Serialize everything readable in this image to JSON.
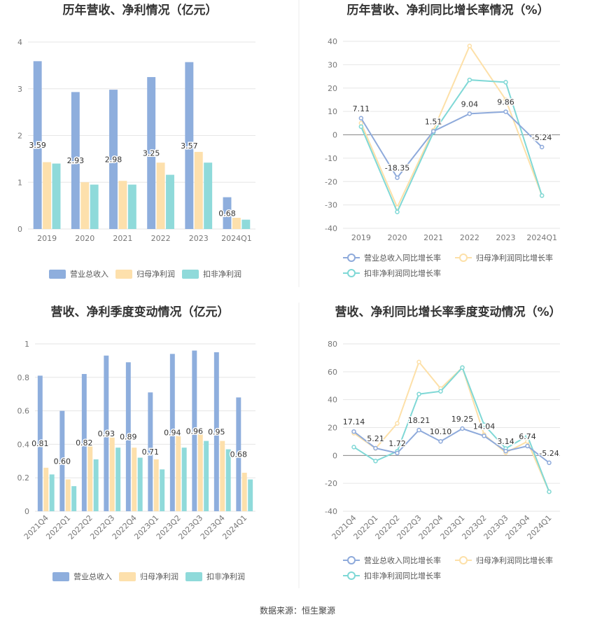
{
  "source": "数据来源：恒生聚源",
  "chart_data": [
    {
      "type": "bar",
      "title": "历年营收、净利情况（亿元）",
      "categories": [
        "2019",
        "2020",
        "2021",
        "2022",
        "2023",
        "2024Q1"
      ],
      "ylim": [
        0,
        4
      ],
      "yticks": [
        0,
        1,
        2,
        3,
        4
      ],
      "series": [
        {
          "name": "营业总收入",
          "color": "#8eaedd",
          "values": [
            3.59,
            2.93,
            2.98,
            3.25,
            3.57,
            0.68
          ],
          "labels": [
            "3.59",
            "2.93",
            "2.98",
            "3.25",
            "3.57",
            "0.68"
          ]
        },
        {
          "name": "归母净利润",
          "color": "#fde0ac",
          "values": [
            1.43,
            1.0,
            1.03,
            1.42,
            1.65,
            0.24
          ]
        },
        {
          "name": "扣非净利润",
          "color": "#8fdada",
          "values": [
            1.4,
            0.95,
            0.95,
            1.16,
            1.42,
            0.2
          ]
        }
      ],
      "legend": "bottom"
    },
    {
      "type": "line",
      "title": "历年营收、净利同比增长率情况（%）",
      "categories": [
        "2019",
        "2020",
        "2021",
        "2022",
        "2023",
        "2024Q1"
      ],
      "ylim": [
        -40,
        40
      ],
      "yticks": [
        -40,
        -30,
        -20,
        -10,
        0,
        10,
        20,
        30,
        40
      ],
      "series": [
        {
          "name": "营业总收入同比增长率",
          "color": "#8eaadb",
          "values": [
            7.11,
            -18.35,
            1.51,
            9.04,
            9.86,
            -5.24
          ],
          "labels": [
            "7.11",
            "-18.35",
            "1.51",
            "9.04",
            "9.86",
            "-5.24"
          ]
        },
        {
          "name": "归母净利润同比增长率",
          "color": "#fde0a8",
          "values": [
            5,
            -31,
            2,
            38,
            15,
            -26
          ]
        },
        {
          "name": "扣非净利润同比增长率",
          "color": "#7fd8d6",
          "values": [
            3.5,
            -33,
            1,
            23.5,
            22.5,
            -26
          ]
        }
      ],
      "legend": "bottom"
    },
    {
      "type": "bar",
      "title": "营收、净利季度变动情况（亿元）",
      "categories": [
        "2021Q4",
        "2022Q1",
        "2022Q2",
        "2022Q3",
        "2022Q4",
        "2023Q1",
        "2023Q2",
        "2023Q3",
        "2023Q4",
        "2024Q1"
      ],
      "ylim": [
        0,
        1
      ],
      "yticks": [
        0,
        0.2,
        0.4,
        0.6,
        0.8,
        1
      ],
      "series": [
        {
          "name": "营业总收入",
          "color": "#8eaedd",
          "values": [
            0.81,
            0.6,
            0.82,
            0.93,
            0.89,
            0.71,
            0.94,
            0.96,
            0.95,
            0.68
          ],
          "labels": [
            "0.81",
            "0.60",
            "0.82",
            "0.93",
            "0.89",
            "0.71",
            "0.94",
            "0.96",
            "0.95",
            "0.68"
          ]
        },
        {
          "name": "归母净利润",
          "color": "#fde0ac",
          "values": [
            0.26,
            0.19,
            0.39,
            0.44,
            0.38,
            0.31,
            0.45,
            0.46,
            0.42,
            0.23
          ]
        },
        {
          "name": "扣非净利润",
          "color": "#8fdada",
          "values": [
            0.22,
            0.15,
            0.31,
            0.38,
            0.32,
            0.25,
            0.38,
            0.42,
            0.37,
            0.19
          ]
        }
      ],
      "legend": "bottom"
    },
    {
      "type": "line",
      "title": "营收、净利同比增长率季度变动情况（%）",
      "categories": [
        "2021Q4",
        "2022Q1",
        "2022Q2",
        "2022Q3",
        "2022Q4",
        "2023Q1",
        "2023Q2",
        "2023Q3",
        "2023Q4",
        "2024Q1"
      ],
      "ylim": [
        -40,
        80
      ],
      "yticks": [
        -40,
        -20,
        0,
        20,
        40,
        60,
        80
      ],
      "series": [
        {
          "name": "营业总收入同比增长率",
          "color": "#8eaadb",
          "values": [
            17.14,
            5.21,
            1.72,
            18.21,
            10.1,
            19.25,
            14.04,
            3.14,
            6.74,
            -5.24
          ],
          "labels": [
            "17.14",
            "5.21",
            "1.72",
            "18.21",
            "10.10",
            "19.25",
            "14.04",
            "3.14",
            "6.74",
            "-5.24"
          ]
        },
        {
          "name": "归母净利润同比增长率",
          "color": "#fde0a8",
          "values": [
            16,
            5,
            23,
            67,
            48,
            63,
            15,
            2,
            10,
            -26
          ]
        },
        {
          "name": "扣非净利润同比增长率",
          "color": "#7fd8d6",
          "values": [
            6,
            -4,
            3,
            44,
            46,
            63,
            22,
            5,
            14,
            -26
          ]
        }
      ],
      "legend": "bottom"
    }
  ]
}
